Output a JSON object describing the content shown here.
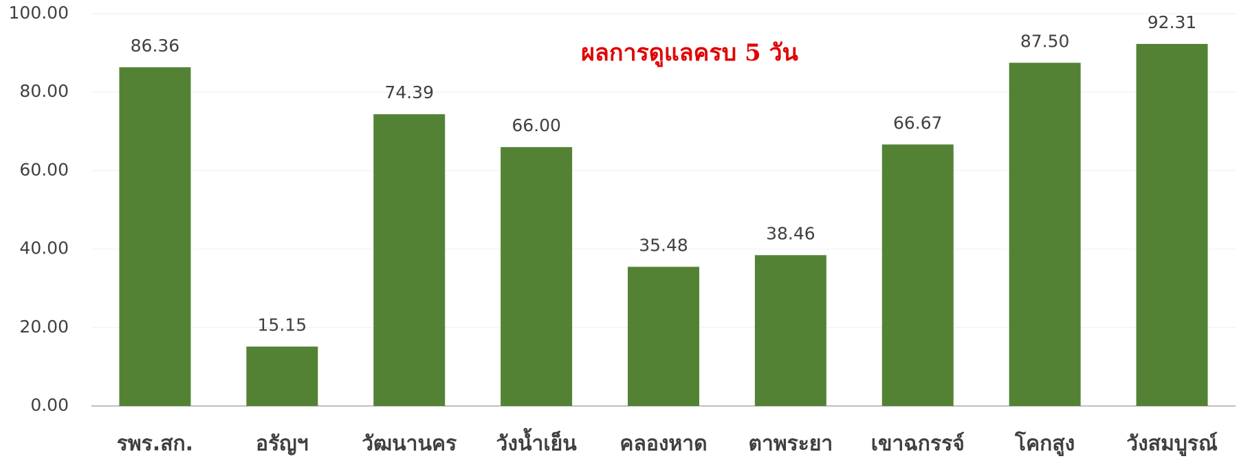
{
  "chart_data": {
    "type": "bar",
    "annotation": "ผลการดูแลครบ 5 วัน",
    "categories": [
      "รพร.สก.",
      "อรัญฯ",
      "วัฒนานคร",
      "วังน้ำเย็น",
      "คลองหาด",
      "ตาพระยา",
      "เขาฉกรรจ์",
      "โคกสูง",
      "วังสมบูรณ์"
    ],
    "values": [
      86.36,
      15.15,
      74.39,
      66.0,
      35.48,
      38.46,
      66.67,
      87.5,
      92.31
    ],
    "value_labels": [
      "86.36",
      "15.15",
      "74.39",
      "66.00",
      "35.48",
      "38.46",
      "66.67",
      "87.50",
      "92.31"
    ],
    "color": "#548235",
    "ylim": [
      0,
      100
    ],
    "yticks": [
      {
        "value": 0,
        "label": "0.00"
      },
      {
        "value": 20,
        "label": "20.00"
      },
      {
        "value": 40,
        "label": "40.00"
      },
      {
        "value": 60,
        "label": "60.00"
      },
      {
        "value": 80,
        "label": "80.00"
      },
      {
        "value": 100,
        "label": "100.00"
      }
    ],
    "grid": true
  }
}
